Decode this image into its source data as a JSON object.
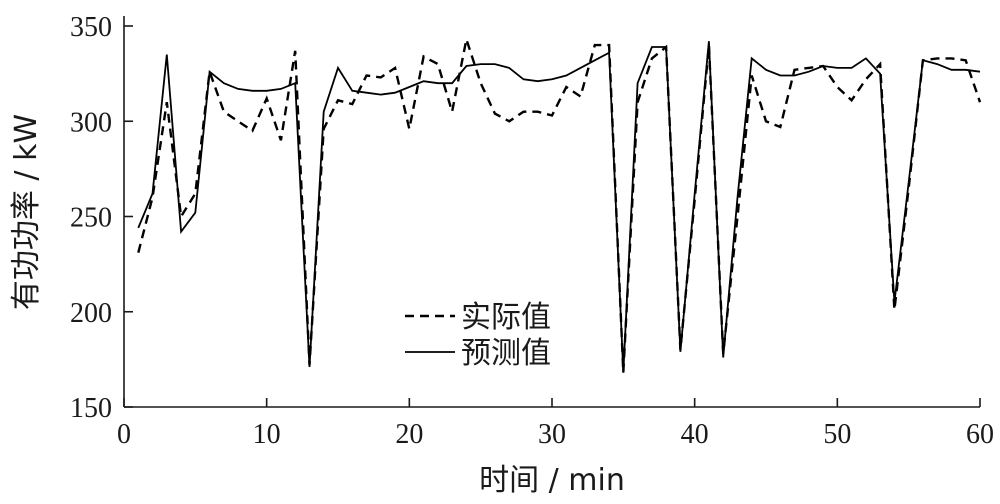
{
  "chart_data": {
    "type": "line",
    "xlabel": "时间 / min",
    "ylabel": "有功功率 / kW",
    "xlim": [
      0,
      60
    ],
    "ylim": [
      150,
      350
    ],
    "xticks": [
      0,
      10,
      20,
      30,
      40,
      50,
      60
    ],
    "yticks": [
      150,
      200,
      250,
      300,
      350
    ],
    "grid": false,
    "legend_position": "lower-center",
    "series": [
      {
        "name": "实际值",
        "line_style": "dashed",
        "color": "#000000",
        "x": [
          1,
          2,
          3,
          4,
          5,
          6,
          7,
          8,
          9,
          10,
          11,
          12,
          13,
          14,
          15,
          16,
          17,
          18,
          19,
          20,
          21,
          22,
          23,
          24,
          25,
          26,
          27,
          28,
          29,
          30,
          31,
          32,
          33,
          34,
          35,
          36,
          37,
          38,
          39,
          40,
          41,
          42,
          43,
          44,
          45,
          46,
          47,
          48,
          49,
          50,
          51,
          52,
          53,
          54,
          55,
          56,
          57,
          58,
          59,
          60
        ],
        "values": [
          231,
          260,
          310,
          250,
          262,
          326,
          305,
          300,
          295,
          312,
          290,
          337,
          172,
          296,
          311,
          309,
          324,
          323,
          328,
          296,
          334,
          330,
          305,
          343,
          320,
          304,
          300,
          305,
          305,
          303,
          318,
          313,
          340,
          340,
          168,
          310,
          333,
          339,
          180,
          259,
          340,
          178,
          250,
          324,
          300,
          297,
          327,
          328,
          329,
          318,
          311,
          322,
          330,
          201,
          265,
          332,
          333,
          333,
          332,
          310
        ]
      },
      {
        "name": "预测值",
        "line_style": "solid",
        "color": "#000000",
        "x": [
          1,
          2,
          3,
          4,
          5,
          6,
          7,
          8,
          9,
          10,
          11,
          12,
          13,
          14,
          15,
          16,
          17,
          18,
          19,
          20,
          21,
          22,
          23,
          24,
          25,
          26,
          27,
          28,
          29,
          30,
          31,
          32,
          33,
          34,
          35,
          36,
          37,
          38,
          39,
          40,
          41,
          42,
          43,
          44,
          45,
          46,
          47,
          48,
          49,
          50,
          51,
          52,
          53,
          54,
          55,
          56,
          57,
          58,
          59,
          60
        ],
        "values": [
          244,
          262,
          335,
          242,
          252,
          326,
          320,
          317,
          316,
          316,
          317,
          320,
          171,
          305,
          328,
          316,
          315,
          314,
          315,
          318,
          321,
          320,
          320,
          329,
          330,
          330,
          328,
          322,
          321,
          322,
          324,
          328,
          332,
          336,
          168,
          320,
          339,
          339,
          179,
          262,
          342,
          176,
          260,
          333,
          327,
          324,
          324,
          326,
          329,
          328,
          328,
          333,
          325,
          205,
          268,
          332,
          330,
          327,
          327,
          326
        ]
      }
    ]
  }
}
